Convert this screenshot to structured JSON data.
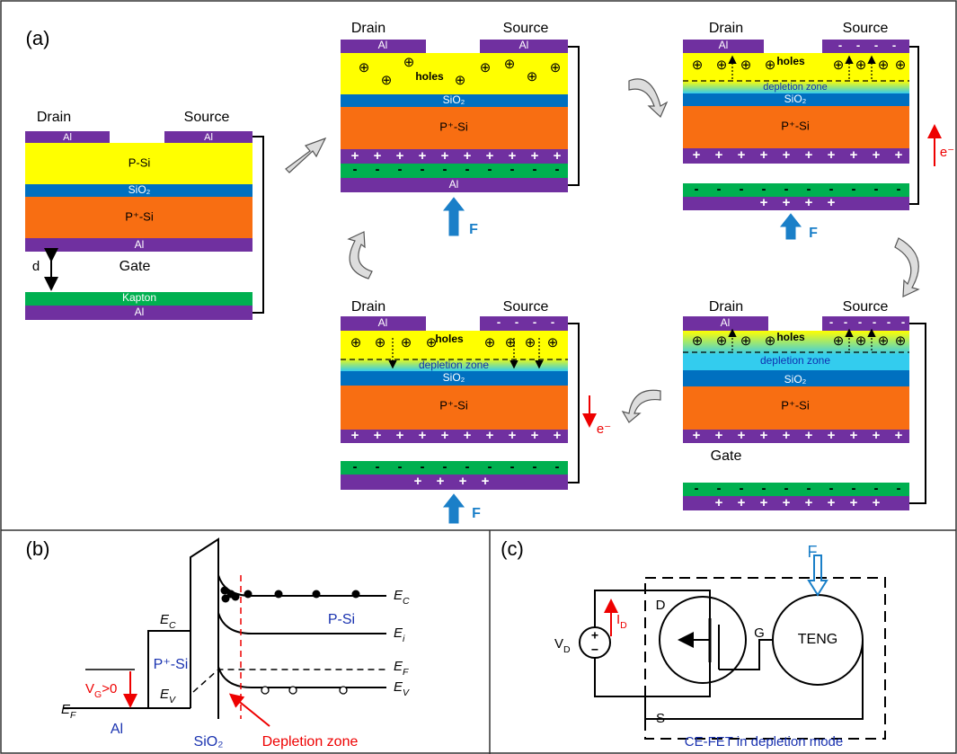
{
  "panel_a": {
    "label": "(a)",
    "initial": {
      "drain": "Drain",
      "source": "Source",
      "al_drain": "Al",
      "al_source": "Al",
      "p_si": "P-Si",
      "sio2": "SiO₂",
      "p_plus_si": "P⁺-Si",
      "al_gate": "Al",
      "gate": "Gate",
      "gap": "d",
      "kapton": "Kapton",
      "al_base": "Al"
    },
    "pressed": {
      "drain": "Drain",
      "source": "Source",
      "al_drain": "Al",
      "al_source": "Al",
      "hole": "⊕",
      "holes": "holes",
      "sio2": "SiO₂",
      "p_plus_si": "P⁺-Si",
      "plus": "+",
      "minus": "-",
      "al_base": "Al",
      "force": "F"
    },
    "charging": {
      "drain": "Drain",
      "source": "Source",
      "al_drain": "Al",
      "minus": "-",
      "hole": "⊕",
      "holes": "holes",
      "depletion": "depletion zone",
      "sio2": "SiO₂",
      "p_plus_si": "P⁺-Si",
      "plus": "+",
      "electron": "e⁻",
      "force": "F"
    },
    "equilibrium": {
      "drain": "Drain",
      "source": "Source",
      "al_drain": "Al",
      "minus": "-",
      "hole": "⊕",
      "holes": "holes",
      "depletion": "depletion zone",
      "sio2": "SiO₂",
      "p_plus_si": "P⁺-Si",
      "plus": "+",
      "gate": "Gate"
    },
    "releasing": {
      "drain": "Drain",
      "source": "Source",
      "al_drain": "Al",
      "minus": "-",
      "hole": "⊕",
      "holes": "holes",
      "depletion": "depletion zone",
      "sio2": "SiO₂",
      "p_plus_si": "P⁺-Si",
      "plus": "+",
      "electron": "e⁻",
      "force": "F"
    }
  },
  "panel_b": {
    "label": "(b)",
    "e_c_left": {
      "main": "E",
      "sub": "C"
    },
    "p_plus_si": "P⁺-Si",
    "e_v_left": {
      "main": "E",
      "sub": "V"
    },
    "bias": {
      "main": "V",
      "sub": "G",
      "rest": ">0"
    },
    "e_f_left": {
      "main": "E",
      "sub": "F"
    },
    "al": "Al",
    "sio2": "SiO₂",
    "depletion": "Depletion zone",
    "p_si": "P-Si",
    "e_c": {
      "main": "E",
      "sub": "C"
    },
    "e_i": {
      "main": "E",
      "sub": "i"
    },
    "e_f": {
      "main": "E",
      "sub": "F"
    },
    "e_v": {
      "main": "E",
      "sub": "V"
    }
  },
  "panel_c": {
    "label": "(c)",
    "force": "F",
    "drain": "D",
    "source": "S",
    "gate": "G",
    "teng": "TENG",
    "current": {
      "main": "I",
      "sub": "D"
    },
    "voltage": {
      "main": "V",
      "sub": "D"
    },
    "plus": "+",
    "minus": "−",
    "caption": "CE-FET in depletion mode"
  }
}
